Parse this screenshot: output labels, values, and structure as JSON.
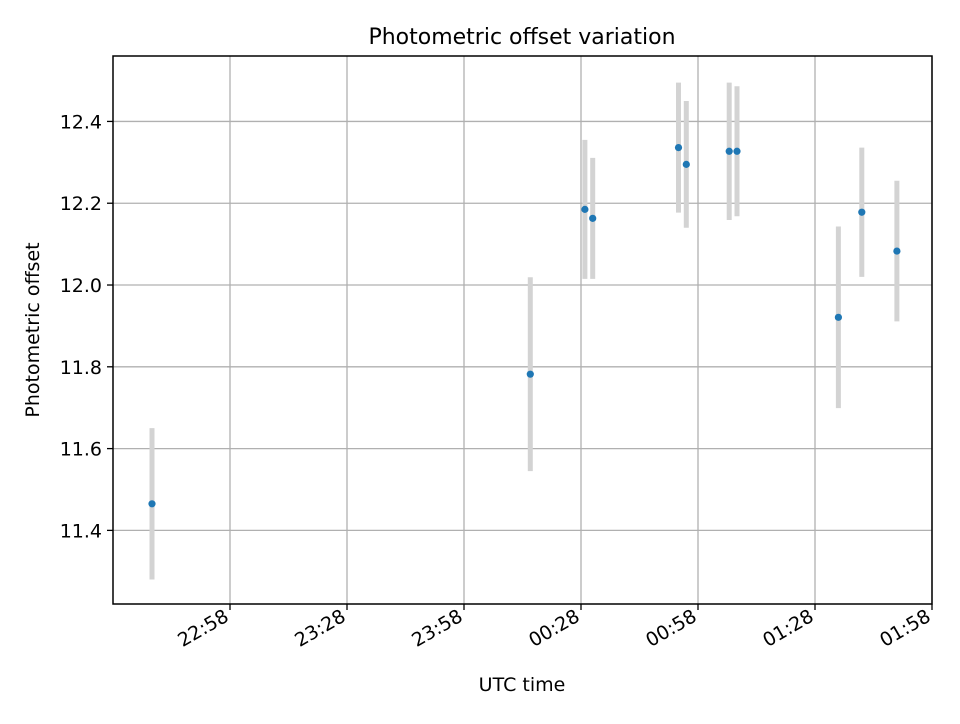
{
  "chart_data": {
    "type": "scatter",
    "title": "Photometric offset variation",
    "xlabel": "UTC time",
    "ylabel": "Photometric offset",
    "x_ticks": [
      "22:58",
      "23:28",
      "23:58",
      "00:28",
      "00:58",
      "01:28",
      "01:58"
    ],
    "y_ticks": [
      "11.4",
      "11.6",
      "11.8",
      "12.0",
      "12.2",
      "12.4"
    ],
    "grid": true,
    "xlim": [
      "22:28",
      "01:58"
    ],
    "ylim": [
      11.22,
      12.56
    ],
    "series": [
      {
        "points": [
          {
            "t": "22:38",
            "y": 11.465,
            "err": 0.185
          },
          {
            "t": "00:15",
            "y": 11.782,
            "err": 0.237
          },
          {
            "t": "00:29",
            "y": 12.185,
            "err": 0.17
          },
          {
            "t": "00:31",
            "y": 12.163,
            "err": 0.148
          },
          {
            "t": "00:53",
            "y": 12.336,
            "err": 0.159
          },
          {
            "t": "00:55",
            "y": 12.295,
            "err": 0.155
          },
          {
            "t": "01:06",
            "y": 12.327,
            "err": 0.168
          },
          {
            "t": "01:08",
            "y": 12.327,
            "err": 0.159
          },
          {
            "t": "01:34",
            "y": 11.921,
            "err": 0.222
          },
          {
            "t": "01:40",
            "y": 12.178,
            "err": 0.158
          },
          {
            "t": "01:49",
            "y": 12.083,
            "err": 0.172
          }
        ]
      }
    ],
    "colors": {
      "point": "#1f77b4",
      "errorbar": "#d3d3d3",
      "grid": "#b0b0b0",
      "axis": "#000000"
    }
  }
}
